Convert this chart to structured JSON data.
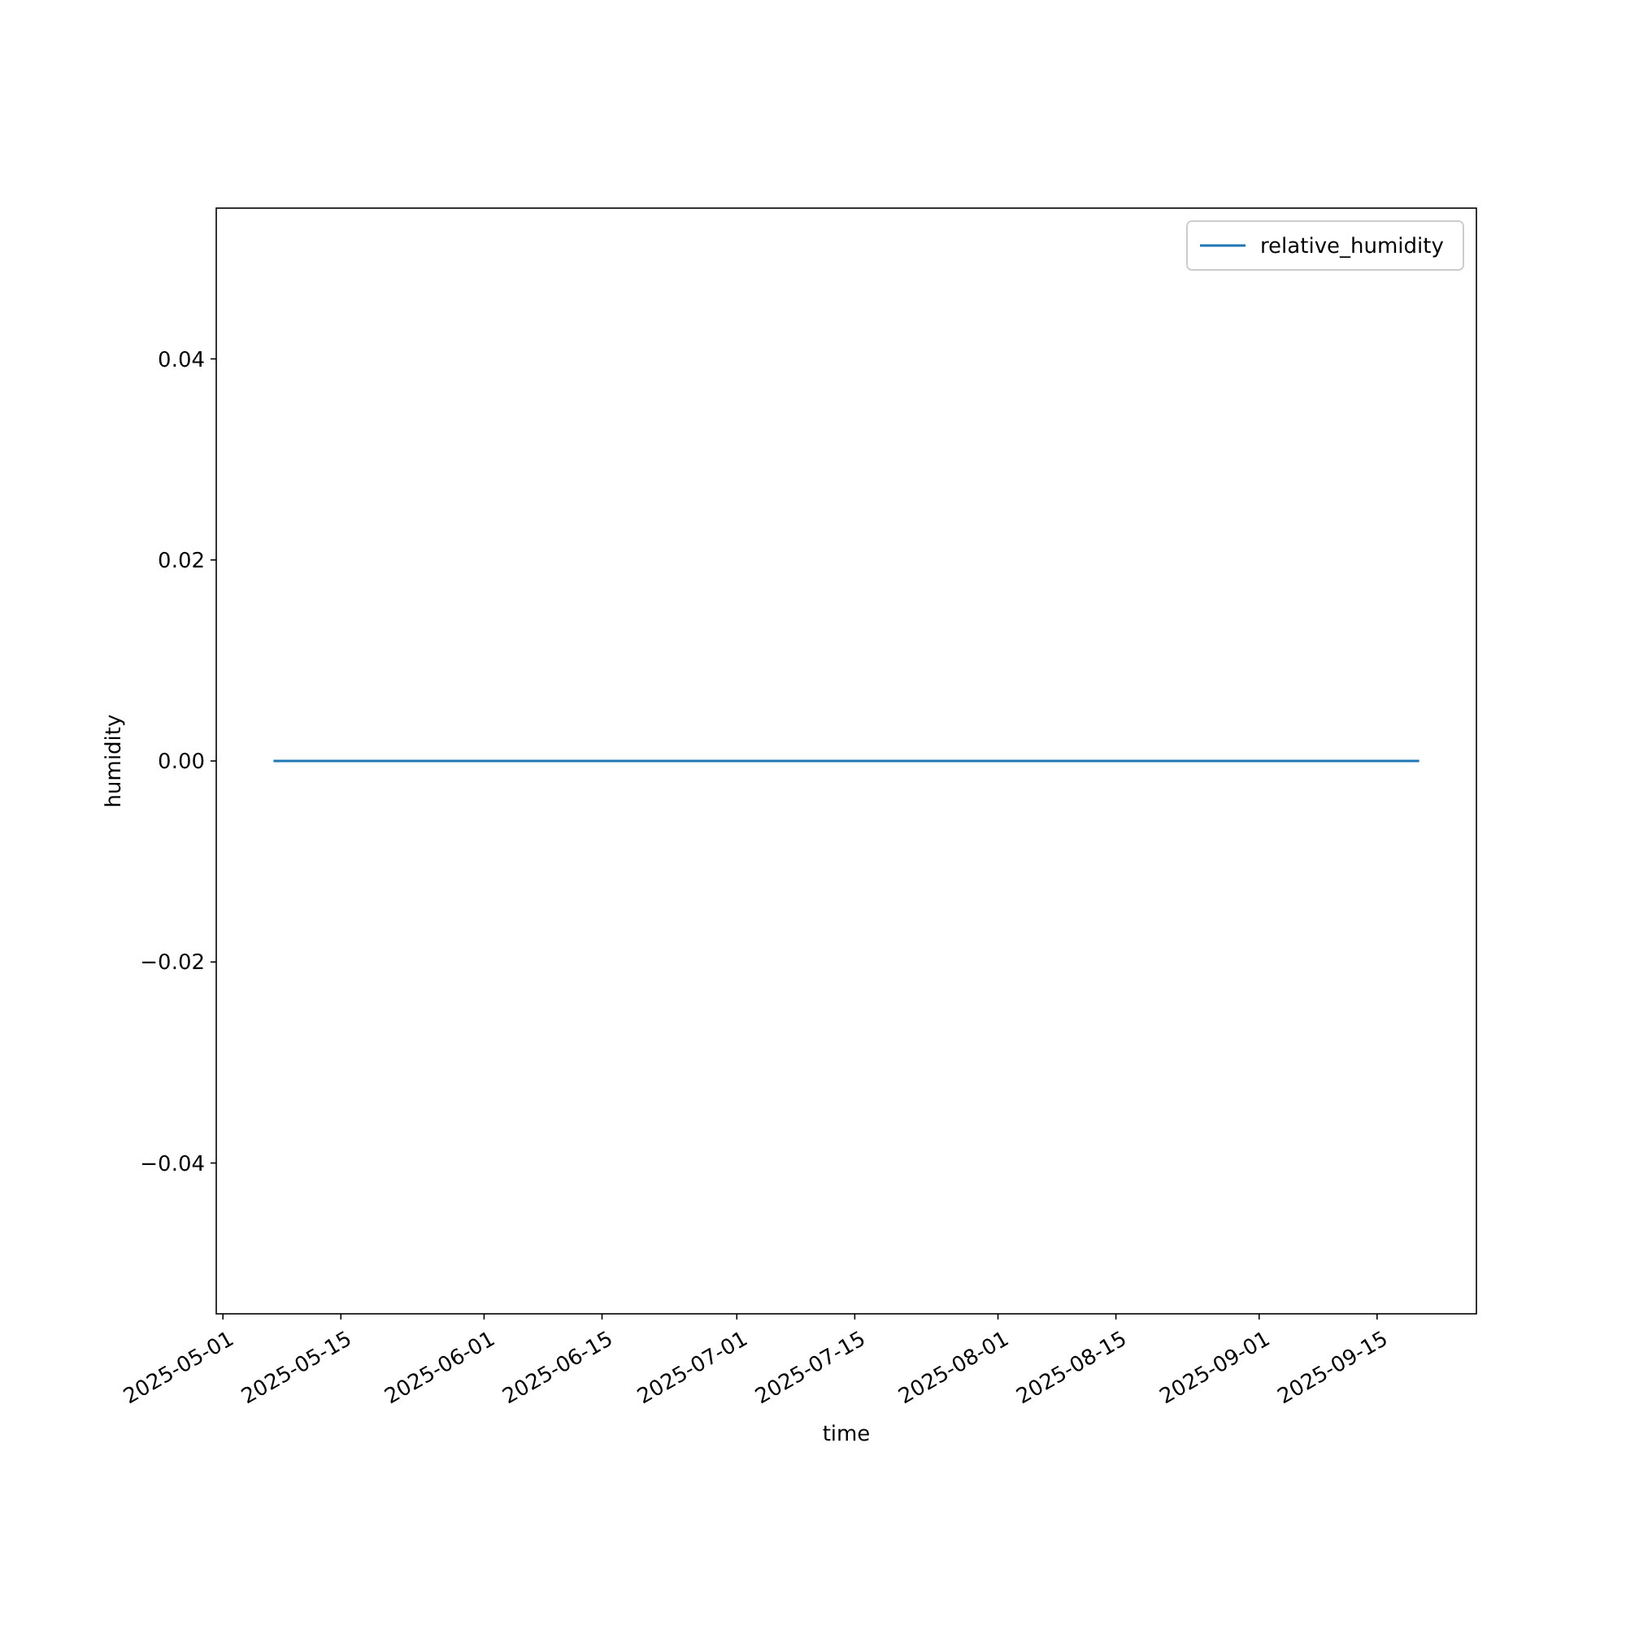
{
  "chart_data": {
    "type": "line",
    "xlabel": "time",
    "ylabel": "humidity",
    "x": [
      "2025-05-07",
      "2025-06-01",
      "2025-07-01",
      "2025-08-01",
      "2025-09-01",
      "2025-09-20"
    ],
    "series": [
      {
        "name": "relative_humidity",
        "color": "#1f77b4",
        "values": [
          0,
          0,
          0,
          0,
          0,
          0
        ]
      }
    ],
    "xlim": [
      "2025-04-30T05:00",
      "2025-09-26T19:00"
    ],
    "xticks": [
      {
        "value": "2025-05-01",
        "label": "2025-05-01"
      },
      {
        "value": "2025-05-15",
        "label": "2025-05-15"
      },
      {
        "value": "2025-06-01",
        "label": "2025-06-01"
      },
      {
        "value": "2025-06-15",
        "label": "2025-06-15"
      },
      {
        "value": "2025-07-01",
        "label": "2025-07-01"
      },
      {
        "value": "2025-07-15",
        "label": "2025-07-15"
      },
      {
        "value": "2025-08-01",
        "label": "2025-08-01"
      },
      {
        "value": "2025-08-15",
        "label": "2025-08-15"
      },
      {
        "value": "2025-09-01",
        "label": "2025-09-01"
      },
      {
        "value": "2025-09-15",
        "label": "2025-09-15"
      }
    ],
    "ylim": [
      -0.055,
      0.055
    ],
    "yticks": [
      {
        "value": -0.04,
        "label": "−0.04"
      },
      {
        "value": -0.02,
        "label": "−0.02"
      },
      {
        "value": 0,
        "label": "0.00"
      },
      0.02,
      0.04
    ],
    "legend": "top right",
    "grid": false,
    "marker": "none",
    "line_style": "solid"
  }
}
